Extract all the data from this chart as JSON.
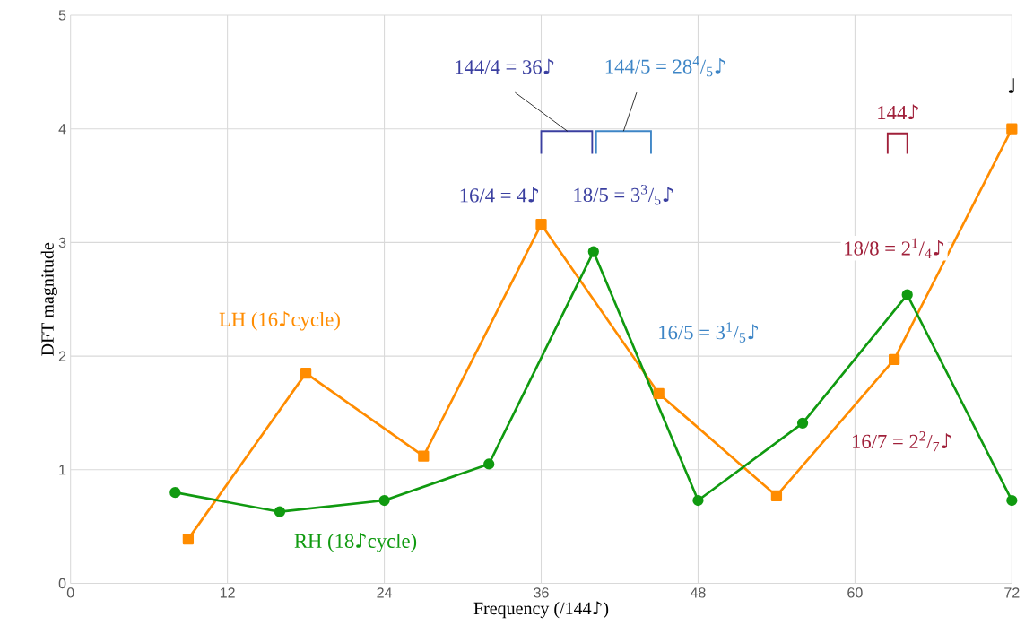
{
  "chart_data": {
    "type": "line",
    "xlabel": "Frequency (/144♪)",
    "ylabel": "DFT magnitude",
    "xlim": [
      0,
      72
    ],
    "ylim": [
      0,
      5
    ],
    "xticks": [
      0,
      12,
      24,
      36,
      48,
      60,
      72
    ],
    "yticks": [
      0,
      1,
      2,
      3,
      4,
      5
    ],
    "grid": true,
    "legend": false,
    "line_style": "solid",
    "series": [
      {
        "name": "LH (16♪cycle)",
        "color": "#ff8c00",
        "marker": "square",
        "x": [
          9,
          18,
          27,
          36,
          45,
          54,
          63,
          72
        ],
        "values": [
          0.39,
          1.85,
          1.12,
          3.16,
          1.67,
          0.77,
          1.97,
          4.0
        ]
      },
      {
        "name": "RH (18♪cycle)",
        "color": "#109a10",
        "marker": "circle",
        "x": [
          8,
          16,
          24,
          32,
          40,
          48,
          56,
          64,
          72
        ],
        "values": [
          0.8,
          0.63,
          0.73,
          1.05,
          2.92,
          0.73,
          1.41,
          2.54,
          0.73
        ]
      }
    ],
    "annotations": [
      "144/4 = 36♪",
      "144/5 = 28$^{4}$/$_{5}$♪",
      "16/4 = 4♪",
      "18/5 = 3$^{3}$/$_{5}$♪",
      "16/5 = 3$^{1}$/$_{5}$♪",
      "144♪",
      "18/8 = 2$^{1}$/$_{4}$♪",
      "16/7 = 2$^{2}$/$_{7}$♪",
      "♩"
    ]
  }
}
